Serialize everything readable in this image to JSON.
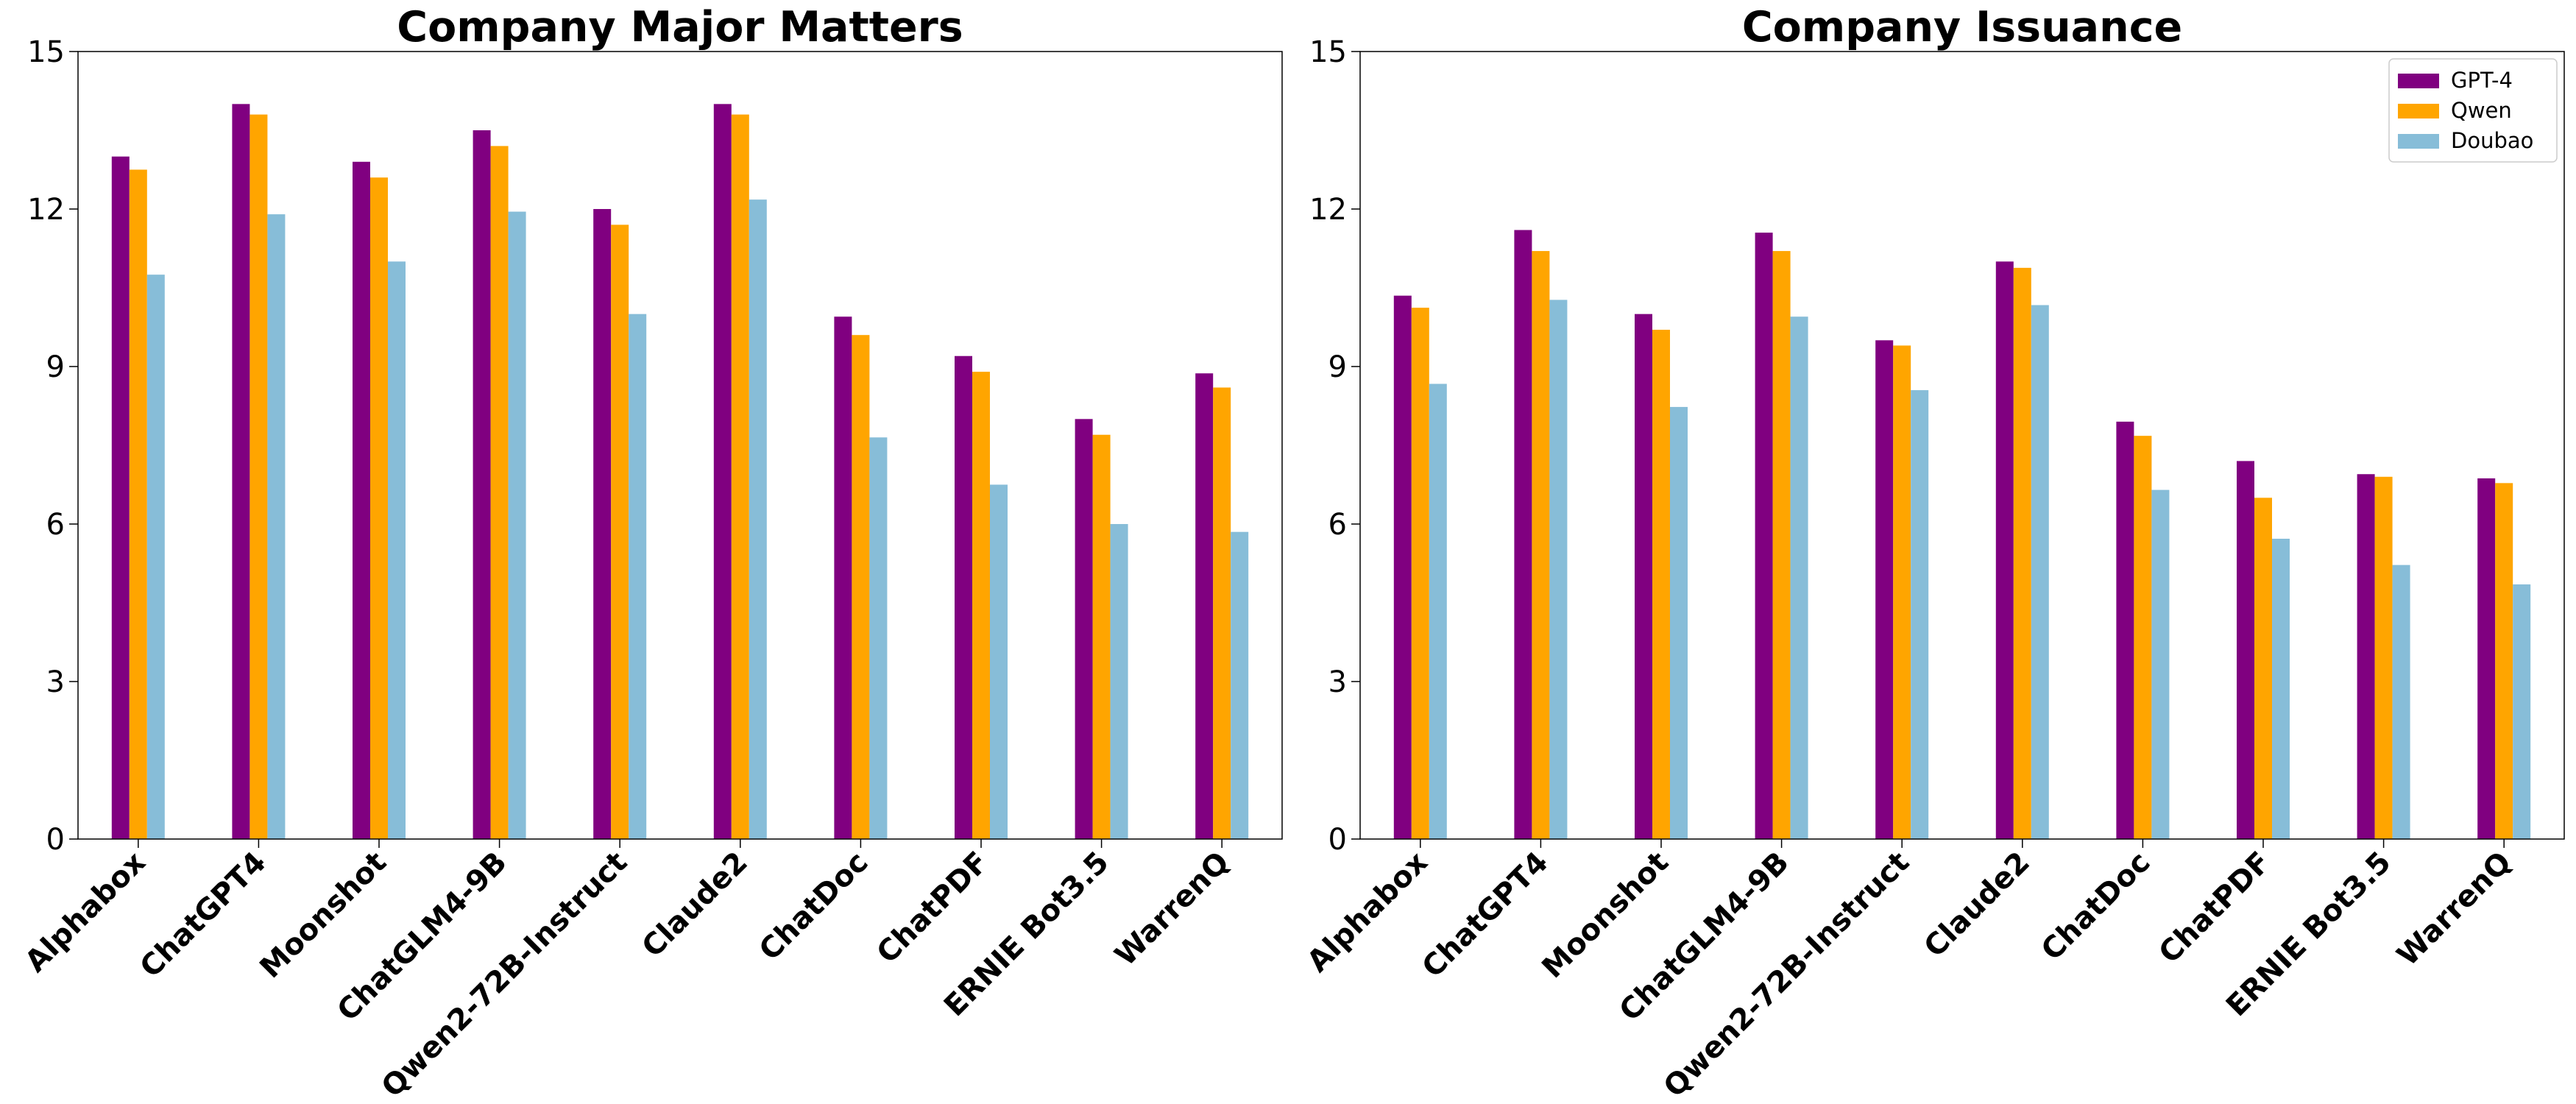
{
  "chart_data": [
    {
      "type": "bar",
      "title": "Company Major Matters",
      "xlabel": "",
      "ylabel": "",
      "ylim": [
        0,
        15
      ],
      "yticks": [
        0,
        3,
        6,
        9,
        12,
        15
      ],
      "grid": false,
      "categories": [
        "Alphabox",
        "ChatGPT4",
        "Moonshot",
        "ChatGLM4-9B",
        "Qwen2-72B-Instruct",
        "Claude2",
        "ChatDoc",
        "ChatPDF",
        "ERNIE Bot3.5",
        "WarrenQ"
      ],
      "series": [
        {
          "name": "GPT-4",
          "color": "#800080",
          "values": [
            13.0,
            14.0,
            12.9,
            13.5,
            12.0,
            14.0,
            9.95,
            9.2,
            8.0,
            8.87
          ]
        },
        {
          "name": "Qwen",
          "color": "#FFA500",
          "values": [
            12.75,
            13.8,
            12.6,
            13.2,
            11.7,
            13.8,
            9.6,
            8.9,
            7.7,
            8.6
          ]
        },
        {
          "name": "Doubao",
          "color": "#87BDD8",
          "values": [
            10.75,
            11.9,
            11.0,
            11.95,
            10.0,
            12.18,
            7.65,
            6.75,
            6.0,
            5.85
          ]
        }
      ]
    },
    {
      "type": "bar",
      "title": "Company Issuance",
      "xlabel": "",
      "ylabel": "",
      "ylim": [
        0,
        15
      ],
      "yticks": [
        0,
        3,
        6,
        9,
        12,
        15
      ],
      "grid": false,
      "legend": "top-right",
      "categories": [
        "Alphabox",
        "ChatGPT4",
        "Moonshot",
        "ChatGLM4-9B",
        "Qwen2-72B-Instruct",
        "Claude2",
        "ChatDoc",
        "ChatPDF",
        "ERNIE Bot3.5",
        "WarrenQ"
      ],
      "series": [
        {
          "name": "GPT-4",
          "color": "#800080",
          "values": [
            10.35,
            11.6,
            10.0,
            11.55,
            9.5,
            11.0,
            7.95,
            7.2,
            6.95,
            6.87
          ]
        },
        {
          "name": "Qwen",
          "color": "#FFA500",
          "values": [
            10.12,
            11.2,
            9.7,
            11.2,
            9.4,
            10.88,
            7.68,
            6.5,
            6.9,
            6.78
          ]
        },
        {
          "name": "Doubao",
          "color": "#87BDD8",
          "values": [
            8.67,
            10.27,
            8.23,
            9.95,
            8.55,
            10.17,
            6.65,
            5.72,
            5.22,
            4.85
          ]
        }
      ]
    }
  ]
}
